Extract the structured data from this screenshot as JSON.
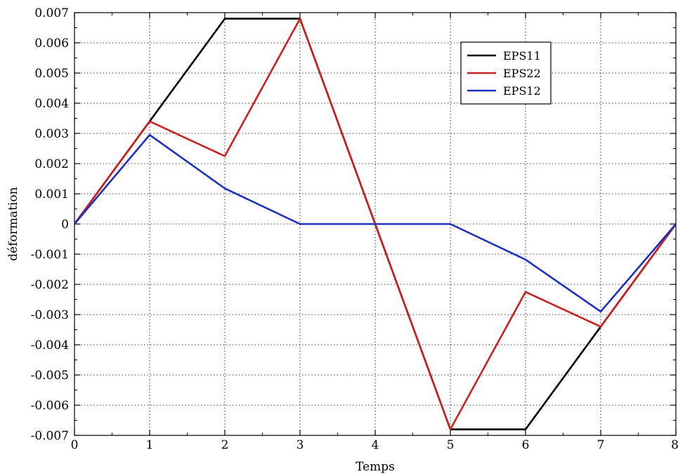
{
  "chart_data": {
    "type": "line",
    "title": "",
    "xlabel": "Temps",
    "ylabel": "déformation",
    "xlim": [
      0,
      8
    ],
    "ylim": [
      -0.007,
      0.007
    ],
    "grid": true,
    "legend_position": "top-right",
    "x_ticks": [
      0,
      1,
      2,
      3,
      4,
      5,
      6,
      7,
      8
    ],
    "x_tick_labels": [
      "0",
      "1",
      "2",
      "3",
      "4",
      "5",
      "6",
      "7",
      "8"
    ],
    "y_ticks": [
      -0.007,
      -0.006,
      -0.005,
      -0.004,
      -0.003,
      -0.002,
      -0.001,
      0,
      0.001,
      0.002,
      0.003,
      0.004,
      0.005,
      0.006,
      0.007
    ],
    "y_tick_labels": [
      "-0.007",
      "-0.006",
      "-0.005",
      "-0.004",
      "-0.003",
      "-0.002",
      "-0.001",
      "0",
      "0.001",
      "0.002",
      "0.003",
      "0.004",
      "0.005",
      "0.006",
      "0.007"
    ],
    "series": [
      {
        "name": "EPS11",
        "color": "#000000",
        "x": [
          0,
          1,
          2,
          3,
          4,
          5,
          6,
          7,
          8
        ],
        "y": [
          0,
          0.0034,
          0.0068,
          0.0068,
          0,
          -0.0068,
          -0.0068,
          -0.0034,
          0
        ]
      },
      {
        "name": "EPS22",
        "color": "#cc2020",
        "x": [
          0,
          1,
          2,
          3,
          4,
          5,
          6,
          7,
          8
        ],
        "y": [
          0,
          0.0034,
          0.00225,
          0.0068,
          0,
          -0.0068,
          -0.00225,
          -0.0034,
          0
        ]
      },
      {
        "name": "EPS12",
        "color": "#1f2fbf",
        "x": [
          0,
          1,
          2,
          3,
          4,
          5,
          6,
          7,
          8
        ],
        "y": [
          0,
          0.00295,
          0.00118,
          0,
          0,
          0,
          -0.00118,
          -0.0029,
          0
        ]
      }
    ]
  }
}
